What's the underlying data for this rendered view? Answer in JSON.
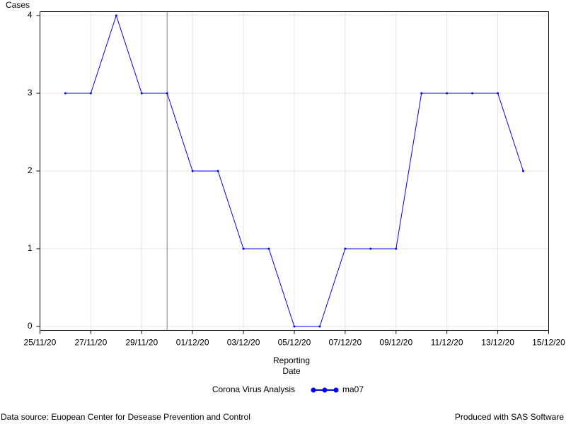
{
  "chart_data": {
    "type": "line",
    "ylabel": "Cases",
    "xlabel_lines": [
      "Reporting",
      "Date"
    ],
    "x": [
      "26/11/20",
      "27/11/20",
      "28/11/20",
      "29/11/20",
      "30/11/20",
      "01/12/20",
      "02/12/20",
      "03/12/20",
      "04/12/20",
      "05/12/20",
      "06/12/20",
      "07/12/20",
      "08/12/20",
      "09/12/20",
      "10/12/20",
      "11/12/20",
      "12/12/20",
      "13/12/20",
      "14/12/20"
    ],
    "series": [
      {
        "name": "ma07",
        "color": "#0000ff",
        "values": [
          3,
          3,
          4,
          3,
          3,
          2,
          2,
          1,
          1,
          0,
          0,
          1,
          1,
          1,
          3,
          3,
          3,
          3,
          2
        ]
      }
    ],
    "xlim": [
      "24/11/20",
      "15/12/20"
    ],
    "xticks": [
      "25/11/20",
      "27/11/20",
      "29/11/20",
      "01/12/20",
      "03/12/20",
      "05/12/20",
      "07/12/20",
      "09/12/20",
      "11/12/20",
      "13/12/20",
      "15/12/20"
    ],
    "ylim": [
      -0.05,
      4.05
    ],
    "yticks": [
      0,
      1,
      2,
      3,
      4
    ],
    "grid": true,
    "reference_line_x": "30/11/20",
    "legend_title": "Corona Virus Analysis",
    "footnote_left": "Data source: Euopean Center for Desease Prevention and Control",
    "footnote_right": "Produced with SAS Software"
  }
}
